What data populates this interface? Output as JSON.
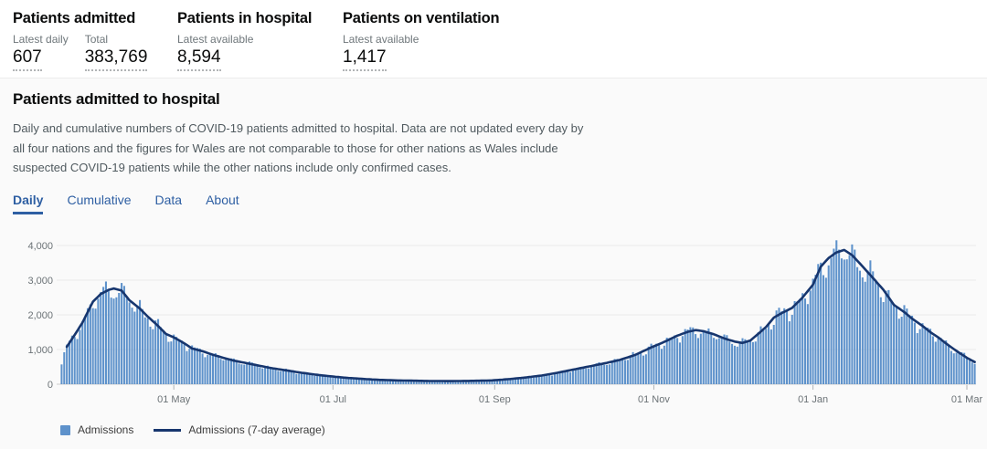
{
  "stats": {
    "cards": [
      {
        "title": "Patients admitted",
        "metrics": [
          {
            "label": "Latest daily",
            "value": "607"
          },
          {
            "label": "Total",
            "value": "383,769"
          }
        ]
      },
      {
        "title": "Patients in hospital",
        "metrics": [
          {
            "label": "Latest available",
            "value": "8,594"
          }
        ]
      },
      {
        "title": "Patients on ventilation",
        "metrics": [
          {
            "label": "Latest available",
            "value": "1,417"
          }
        ]
      }
    ]
  },
  "card": {
    "title": "Patients admitted to hospital",
    "description_lines": [
      "Daily and cumulative numbers of COVID-19 patients admitted to hospital. Data are not updated every day by",
      "all four nations and the figures for Wales are not comparable to those for other nations as Wales include",
      "suspected COVID-19 patients while the other nations include only confirmed cases."
    ],
    "tabs": [
      {
        "label": "Daily",
        "active": true
      },
      {
        "label": "Cumulative",
        "active": false
      },
      {
        "label": "Data",
        "active": false
      },
      {
        "label": "About",
        "active": false
      }
    ]
  },
  "legend": {
    "bar_label": "Admissions",
    "line_label": "Admissions (7-day average)"
  },
  "colors": {
    "bar": "#5e92cb",
    "line": "#17366e",
    "tab_blue": "#2e5fa3",
    "grid": "#e9e9e9",
    "baseline": "#cfcfcf",
    "axis_text": "#6b7276",
    "tick_mark": "#b1b4b6"
  },
  "chart_data": {
    "type": "bar",
    "description": "Daily hospital admissions (bars) with 7-day average line, ~19 Mar 2020 to ~4 Mar 2021",
    "total_days": 351,
    "line_start_day": 2,
    "ylim": [
      0,
      4400
    ],
    "grid": true,
    "legend_position": "bottom-left",
    "series": [
      {
        "name": "Admissions",
        "kind": "bar"
      },
      {
        "name": "Admissions (7-day average)",
        "kind": "line"
      }
    ],
    "x_ticks": [
      {
        "day": 43,
        "label": "01 May"
      },
      {
        "day": 104,
        "label": "01 Jul"
      },
      {
        "day": 166,
        "label": "01 Sep"
      },
      {
        "day": 227,
        "label": "01 Nov"
      },
      {
        "day": 288,
        "label": "01 Jan"
      },
      {
        "day": 347,
        "label": "01 Mar"
      }
    ],
    "y_ticks": [
      {
        "value": 0,
        "label": "0"
      },
      {
        "value": 1000,
        "label": "1,000"
      },
      {
        "value": 2000,
        "label": "2,000"
      },
      {
        "value": 3000,
        "label": "3,000"
      },
      {
        "value": 4000,
        "label": "4,000"
      }
    ],
    "avg_points": [
      [
        0,
        620
      ],
      [
        1,
        850
      ],
      [
        2,
        1080
      ],
      [
        5,
        1420
      ],
      [
        8,
        1780
      ],
      [
        12,
        2380
      ],
      [
        15,
        2600
      ],
      [
        18,
        2720
      ],
      [
        20,
        2760
      ],
      [
        23,
        2700
      ],
      [
        26,
        2420
      ],
      [
        30,
        2180
      ],
      [
        33,
        1950
      ],
      [
        36,
        1750
      ],
      [
        40,
        1450
      ],
      [
        43,
        1350
      ],
      [
        47,
        1180
      ],
      [
        50,
        1030
      ],
      [
        54,
        950
      ],
      [
        58,
        850
      ],
      [
        62,
        760
      ],
      [
        66,
        680
      ],
      [
        70,
        620
      ],
      [
        74,
        560
      ],
      [
        80,
        470
      ],
      [
        86,
        400
      ],
      [
        92,
        330
      ],
      [
        98,
        270
      ],
      [
        104,
        220
      ],
      [
        110,
        180
      ],
      [
        116,
        150
      ],
      [
        122,
        125
      ],
      [
        128,
        110
      ],
      [
        135,
        100
      ],
      [
        142,
        92
      ],
      [
        149,
        90
      ],
      [
        156,
        95
      ],
      [
        163,
        105
      ],
      [
        166,
        115
      ],
      [
        172,
        150
      ],
      [
        178,
        195
      ],
      [
        184,
        250
      ],
      [
        190,
        330
      ],
      [
        196,
        420
      ],
      [
        202,
        510
      ],
      [
        208,
        600
      ],
      [
        214,
        700
      ],
      [
        220,
        850
      ],
      [
        226,
        1060
      ],
      [
        231,
        1220
      ],
      [
        236,
        1400
      ],
      [
        240,
        1510
      ],
      [
        243,
        1560
      ],
      [
        246,
        1530
      ],
      [
        250,
        1440
      ],
      [
        254,
        1320
      ],
      [
        258,
        1230
      ],
      [
        261,
        1190
      ],
      [
        264,
        1260
      ],
      [
        267,
        1450
      ],
      [
        270,
        1650
      ],
      [
        273,
        1920
      ],
      [
        276,
        2050
      ],
      [
        280,
        2200
      ],
      [
        284,
        2500
      ],
      [
        288,
        2870
      ],
      [
        291,
        3390
      ],
      [
        294,
        3640
      ],
      [
        297,
        3800
      ],
      [
        300,
        3870
      ],
      [
        303,
        3720
      ],
      [
        306,
        3480
      ],
      [
        309,
        3230
      ],
      [
        312,
        2980
      ],
      [
        315,
        2720
      ],
      [
        319,
        2290
      ],
      [
        323,
        2080
      ],
      [
        326,
        1890
      ],
      [
        330,
        1680
      ],
      [
        333,
        1500
      ],
      [
        336,
        1350
      ],
      [
        340,
        1120
      ],
      [
        343,
        960
      ],
      [
        347,
        760
      ],
      [
        350,
        640
      ]
    ],
    "weekday_pattern": [
      0.92,
      1.03,
      1.07,
      1.05,
      1.01,
      0.96,
      0.88
    ],
    "bar_value_cap": 4150
  }
}
